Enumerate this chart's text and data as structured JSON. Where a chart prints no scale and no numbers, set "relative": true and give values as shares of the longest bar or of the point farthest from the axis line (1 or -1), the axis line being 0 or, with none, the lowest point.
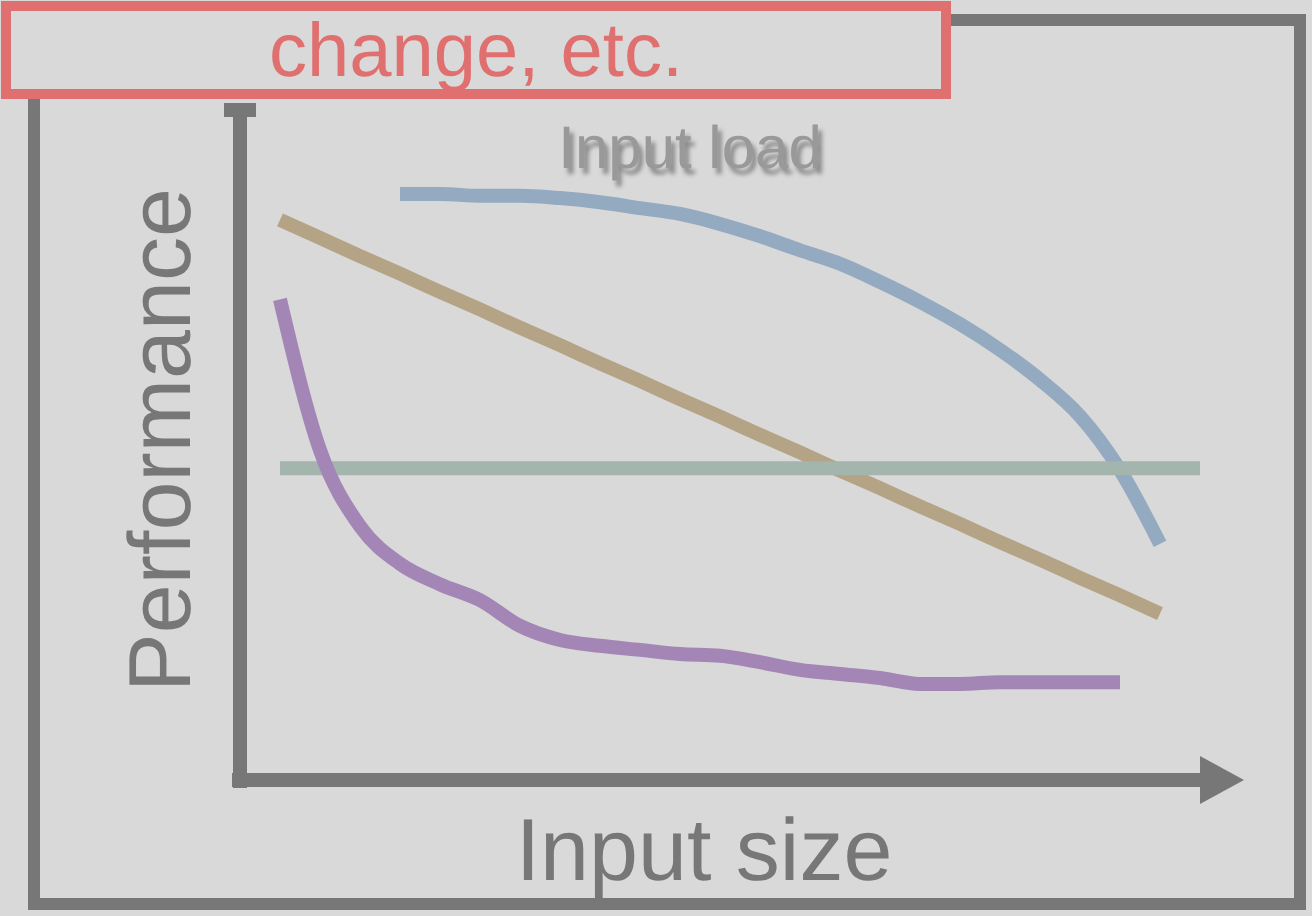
{
  "chart_data": {
    "type": "line",
    "relative": true,
    "xlabel": "Input size",
    "ylabel": "Performance",
    "annotations": [
      "change, etc.",
      "Input load"
    ],
    "categories": [
      null,
      null,
      null,
      null,
      null,
      null,
      null,
      null,
      null,
      null,
      null,
      null,
      null,
      null,
      null,
      null,
      null,
      null,
      null,
      null,
      null,
      null,
      null,
      null,
      null
    ],
    "series": [
      {
        "color": "#93aac0",
        "values": [
          null,
          null,
          null,
          null,
          1.0,
          1.0,
          0.997,
          0.997,
          0.993,
          0.986,
          0.976,
          0.966,
          0.949,
          0.928,
          0.904,
          0.881,
          0.85,
          0.816,
          0.778,
          0.734,
          0.683,
          0.621,
          0.529,
          0.403,
          null
        ]
      },
      {
        "color": "#b5a386",
        "values": [
          null,
          0.956,
          0.925,
          0.894,
          0.864,
          0.833,
          0.803,
          0.772,
          0.742,
          0.711,
          0.681,
          0.65,
          0.62,
          0.589,
          0.559,
          0.528,
          0.498,
          0.467,
          0.437,
          0.406,
          0.376,
          0.345,
          0.315,
          0.284,
          null
        ]
      },
      {
        "color": "#a3b5ad",
        "values": [
          null,
          0.532,
          0.532,
          0.532,
          0.532,
          0.532,
          0.532,
          0.532,
          0.532,
          0.532,
          0.532,
          0.532,
          0.532,
          0.532,
          0.532,
          0.532,
          0.532,
          0.532,
          0.532,
          0.532,
          0.532,
          0.532,
          0.532,
          0.532,
          0.532
        ]
      },
      {
        "color": "#a386b5",
        "values": [
          null,
          0.82,
          0.563,
          0.433,
          0.369,
          0.334,
          0.307,
          0.263,
          0.239,
          0.229,
          0.222,
          0.215,
          0.212,
          0.201,
          0.188,
          0.181,
          0.174,
          0.164,
          0.164,
          0.167,
          0.167,
          0.167,
          0.167,
          null,
          null
        ]
      }
    ]
  }
}
